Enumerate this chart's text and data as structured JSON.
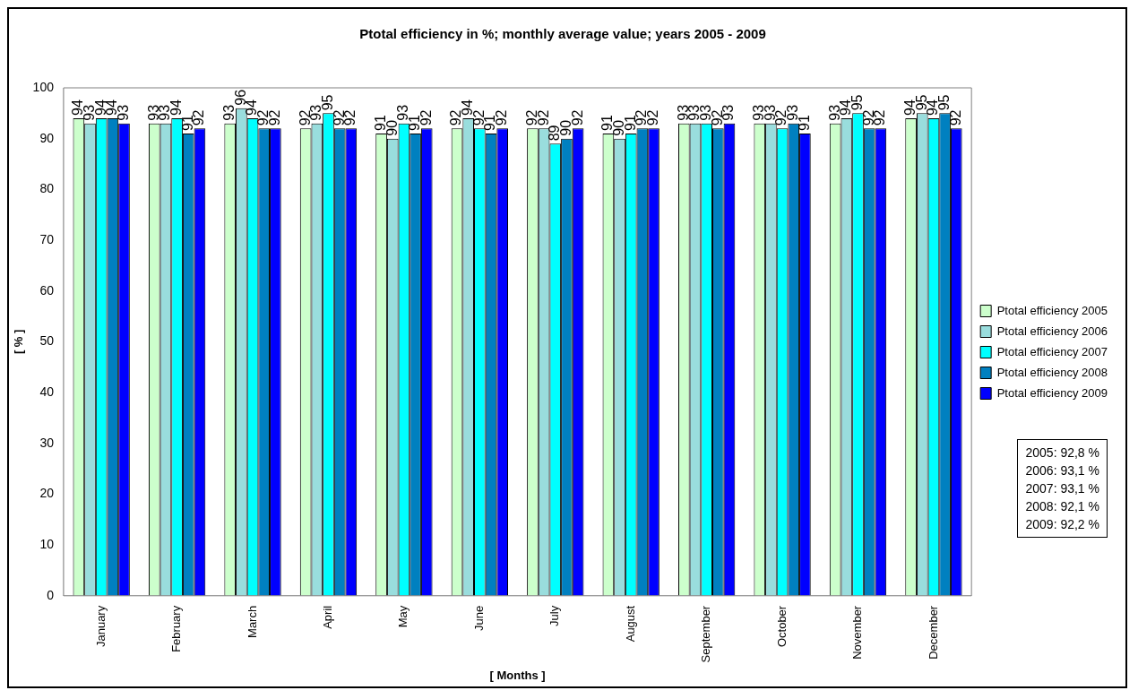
{
  "chart_data": {
    "type": "bar",
    "title": "Ptotal efficiency in %; monthly average value; years 2005 - 2009",
    "xlabel": "[ Months ]",
    "ylabel": "[ % ]",
    "categories": [
      "January",
      "February",
      "March",
      "April",
      "May",
      "June",
      "July",
      "August",
      "September",
      "October",
      "November",
      "December"
    ],
    "series": [
      {
        "name": "Ptotal efficiency 2005",
        "color": "#ccffcc",
        "values": [
          94,
          93,
          93,
          92,
          91,
          92,
          92,
          91,
          93,
          93,
          93,
          94
        ]
      },
      {
        "name": "Ptotal efficiency 2006",
        "color": "#99dddd",
        "values": [
          93,
          93,
          96,
          93,
          90,
          94,
          92,
          90,
          93,
          93,
          94,
          95
        ]
      },
      {
        "name": "Ptotal efficiency 2007",
        "color": "#00ffff",
        "values": [
          94,
          94,
          94,
          95,
          93,
          92,
          89,
          91,
          93,
          92,
          95,
          94
        ]
      },
      {
        "name": "Ptotal efficiency 2008",
        "color": "#0080c0",
        "values": [
          94,
          91,
          92,
          92,
          91,
          91,
          90,
          92,
          92,
          93,
          92,
          95
        ]
      },
      {
        "name": "Ptotal efficiency 2009",
        "color": "#0000ff",
        "values": [
          93,
          92,
          92,
          92,
          92,
          92,
          92,
          92,
          93,
          91,
          92,
          92
        ]
      }
    ],
    "ylim": [
      0,
      100
    ],
    "yticks": [
      0,
      10,
      20,
      30,
      40,
      50,
      60,
      70,
      80,
      90,
      100
    ],
    "grid": false,
    "legend": "right",
    "data_labels": true,
    "annotations": [
      "2005: 92,8 %",
      "2006: 93,1 %",
      "2007: 93,1 %",
      "2008: 92,1 %",
      "2009: 92,2 %"
    ]
  }
}
